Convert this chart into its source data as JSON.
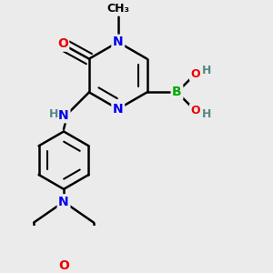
{
  "bg_color": "#ebebeb",
  "bond_color": "#000000",
  "bond_width": 1.8,
  "atom_colors": {
    "N": "#0000ee",
    "O": "#ee0000",
    "B": "#00aa00",
    "C": "#000000",
    "H": "#558888"
  },
  "font_size": 10,
  "small_font_size": 8
}
